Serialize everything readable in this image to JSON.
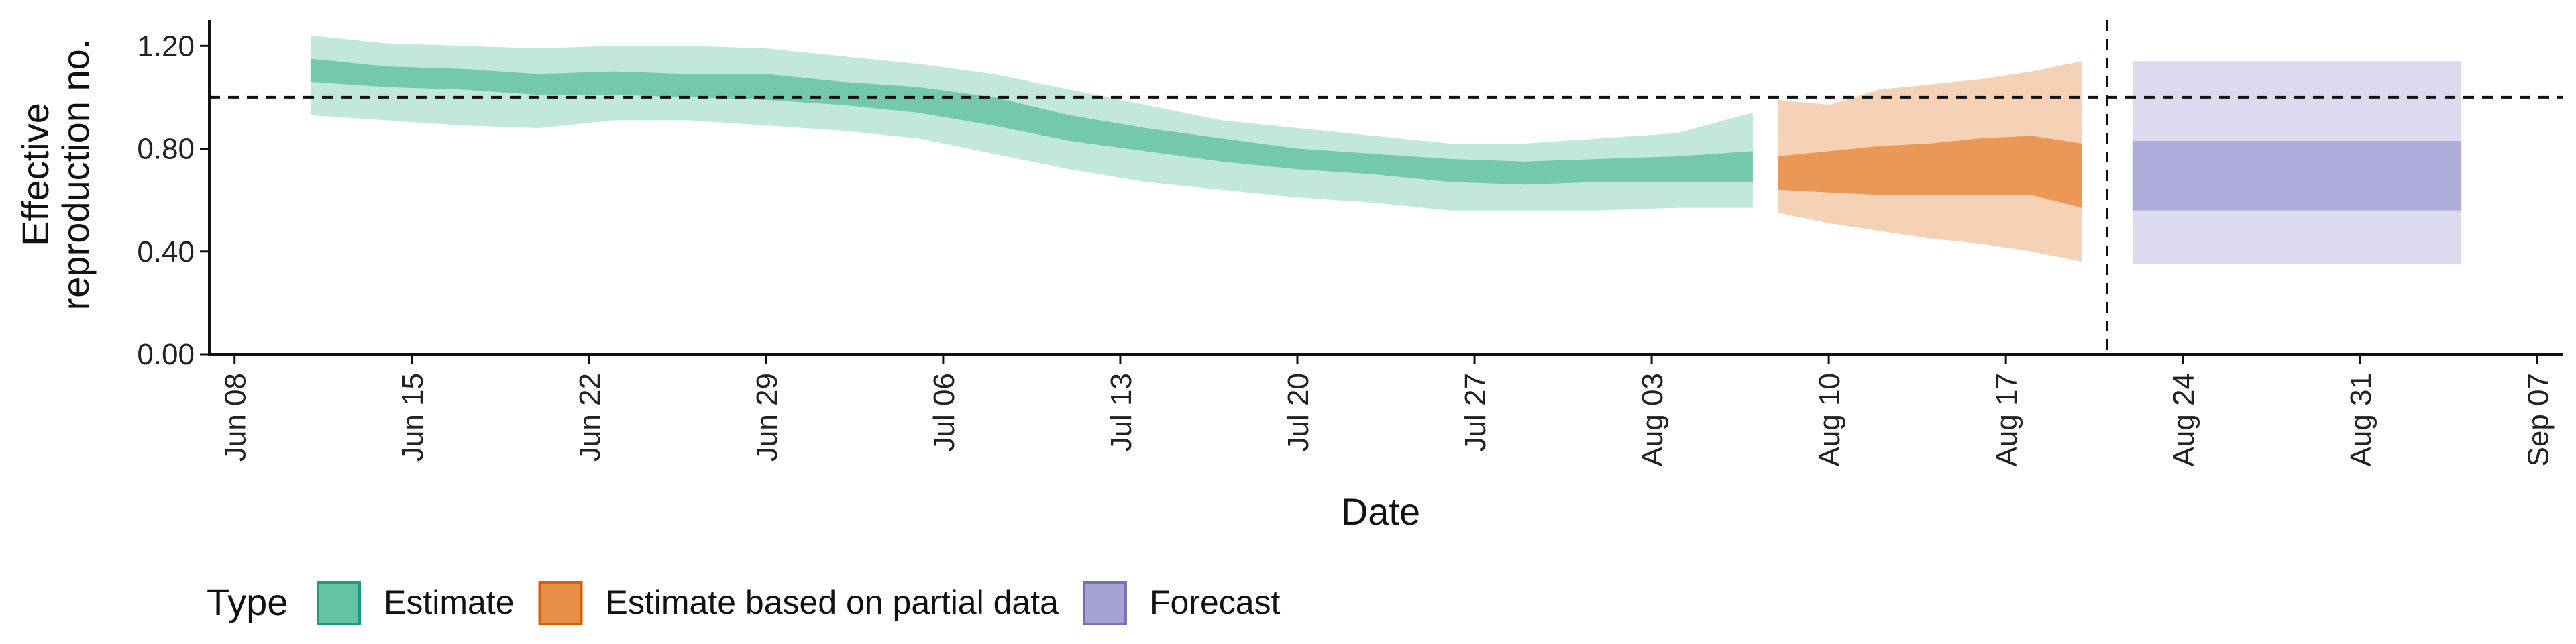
{
  "chart_data": {
    "type": "area",
    "xlabel": "Date",
    "ylabel_lines": [
      "Effective",
      "reproduction no."
    ],
    "ylim": [
      0,
      1.3
    ],
    "yticks": [
      0.0,
      0.4,
      0.8,
      1.2
    ],
    "ytick_labels": [
      "0.00",
      "0.40",
      "0.80",
      "1.20"
    ],
    "xlim": [
      "2020-06-07",
      "2020-09-08"
    ],
    "xticks": [
      "2020-06-08",
      "2020-06-15",
      "2020-06-22",
      "2020-06-29",
      "2020-07-06",
      "2020-07-13",
      "2020-07-20",
      "2020-07-27",
      "2020-08-03",
      "2020-08-10",
      "2020-08-17",
      "2020-08-24",
      "2020-08-31",
      "2020-09-07"
    ],
    "xtick_labels": [
      "Jun 08",
      "Jun 15",
      "Jun 22",
      "Jun 29",
      "Jul 06",
      "Jul 13",
      "Jul 20",
      "Jul 27",
      "Aug 03",
      "Aug 10",
      "Aug 17",
      "Aug 24",
      "Aug 31",
      "Sep 07"
    ],
    "reference_line_y": 1.0,
    "forecast_start_date": "2020-08-21",
    "legend_title": "Type",
    "legend_position": "bottom",
    "series": [
      {
        "name": "Estimate",
        "color": "#1B9E77",
        "fill": "#66C2A5",
        "dates": [
          "2020-06-11",
          "2020-06-14",
          "2020-06-17",
          "2020-06-20",
          "2020-06-23",
          "2020-06-26",
          "2020-06-29",
          "2020-07-02",
          "2020-07-05",
          "2020-07-08",
          "2020-07-11",
          "2020-07-14",
          "2020-07-17",
          "2020-07-20",
          "2020-07-23",
          "2020-07-26",
          "2020-07-29",
          "2020-08-01",
          "2020-08-04",
          "2020-08-07"
        ],
        "outer_low": [
          0.93,
          0.91,
          0.89,
          0.88,
          0.91,
          0.91,
          0.89,
          0.87,
          0.84,
          0.78,
          0.72,
          0.67,
          0.64,
          0.61,
          0.59,
          0.56,
          0.56,
          0.56,
          0.57,
          0.57
        ],
        "inner_low": [
          1.06,
          1.04,
          1.03,
          1.01,
          1.01,
          1.0,
          0.99,
          0.97,
          0.94,
          0.89,
          0.83,
          0.79,
          0.75,
          0.72,
          0.7,
          0.67,
          0.66,
          0.67,
          0.67,
          0.67
        ],
        "inner_high": [
          1.15,
          1.12,
          1.11,
          1.09,
          1.1,
          1.09,
          1.09,
          1.06,
          1.04,
          1.0,
          0.93,
          0.88,
          0.84,
          0.8,
          0.78,
          0.76,
          0.75,
          0.76,
          0.77,
          0.79
        ],
        "outer_high": [
          1.24,
          1.21,
          1.2,
          1.19,
          1.2,
          1.2,
          1.19,
          1.16,
          1.13,
          1.09,
          1.03,
          0.97,
          0.91,
          0.88,
          0.85,
          0.82,
          0.82,
          0.84,
          0.86,
          0.94
        ]
      },
      {
        "name": "Estimate based on partial data",
        "color": "#D95F02",
        "fill": "#E78E47",
        "dates": [
          "2020-08-08",
          "2020-08-10",
          "2020-08-12",
          "2020-08-14",
          "2020-08-16",
          "2020-08-18",
          "2020-08-20"
        ],
        "outer_low": [
          0.55,
          0.51,
          0.48,
          0.45,
          0.43,
          0.4,
          0.36
        ],
        "inner_low": [
          0.64,
          0.63,
          0.62,
          0.62,
          0.62,
          0.62,
          0.57
        ],
        "inner_high": [
          0.77,
          0.79,
          0.81,
          0.82,
          0.84,
          0.85,
          0.82
        ],
        "outer_high": [
          0.99,
          0.97,
          1.03,
          1.05,
          1.07,
          1.1,
          1.14
        ]
      },
      {
        "name": "Forecast",
        "color": "#7570B3",
        "fill": "#A6A3D4",
        "dates": [
          "2020-08-22",
          "2020-09-04"
        ],
        "outer_low": [
          0.35,
          0.35
        ],
        "inner_low": [
          0.56,
          0.56
        ],
        "inner_high": [
          0.83,
          0.83
        ],
        "outer_high": [
          1.14,
          1.14
        ]
      }
    ]
  }
}
